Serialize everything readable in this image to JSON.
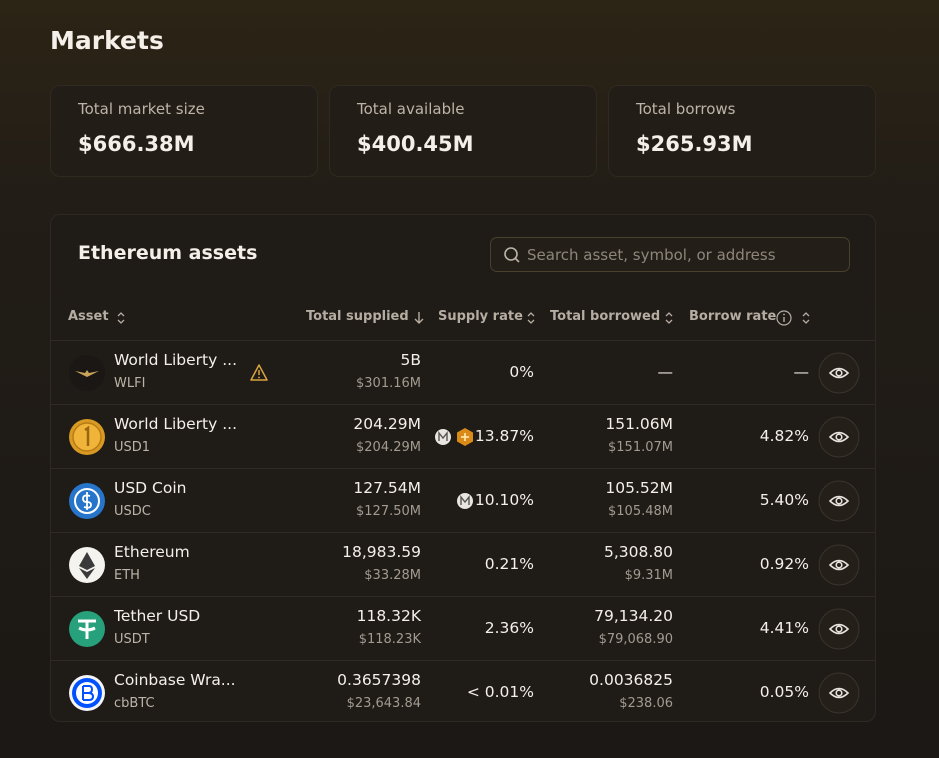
{
  "header": {
    "title": "Markets"
  },
  "stats": [
    {
      "label": "Total market size",
      "value": "$666.38M"
    },
    {
      "label": "Total available",
      "value": "$400.45M"
    },
    {
      "label": "Total borrows",
      "value": "$265.93M"
    }
  ],
  "table": {
    "title": "Ethereum assets",
    "search_placeholder": "Search asset, symbol, or address",
    "columns": [
      "Asset",
      "Total supplied",
      "Supply rate",
      "Total borrowed",
      "Borrow rate"
    ],
    "rows": [
      {
        "name": "World Liberty ...",
        "symbol": "WLFI",
        "supplied": "5B",
        "supplied_usd": "$301.16M",
        "supply_rate": "0%",
        "borrowed": "—",
        "borrow_rate": "—"
      },
      {
        "name": "World Liberty ...",
        "symbol": "USD1",
        "supplied": "204.29M",
        "supplied_usd": "$204.29M",
        "supply_rate": "13.87%",
        "borrowed": "151.06M",
        "borrowed_usd": "$151.07M",
        "borrow_rate": "4.82%"
      },
      {
        "name": "USD Coin",
        "symbol": "USDC",
        "supplied": "127.54M",
        "supplied_usd": "$127.50M",
        "supply_rate": "10.10%",
        "borrowed": "105.52M",
        "borrowed_usd": "$105.48M",
        "borrow_rate": "5.40%"
      },
      {
        "name": "Ethereum",
        "symbol": "ETH",
        "supplied": "18,983.59",
        "supplied_usd": "$33.28M",
        "supply_rate": "0.21%",
        "borrowed": "5,308.80",
        "borrowed_usd": "$9.31M",
        "borrow_rate": "0.92%"
      },
      {
        "name": "Tether USD",
        "symbol": "USDT",
        "supplied": "118.32K",
        "supplied_usd": "$118.23K",
        "supply_rate": "2.36%",
        "borrowed": "79,134.20",
        "borrowed_usd": "$79,068.90",
        "borrow_rate": "4.41%"
      },
      {
        "name": "Coinbase Wra...",
        "symbol": "cbBTC",
        "supplied": "0.3657398",
        "supplied_usd": "$23,643.84",
        "supply_rate": "< 0.01%",
        "borrowed": "0.0036825",
        "borrowed_usd": "$238.06",
        "borrow_rate": "0.05%"
      }
    ]
  }
}
